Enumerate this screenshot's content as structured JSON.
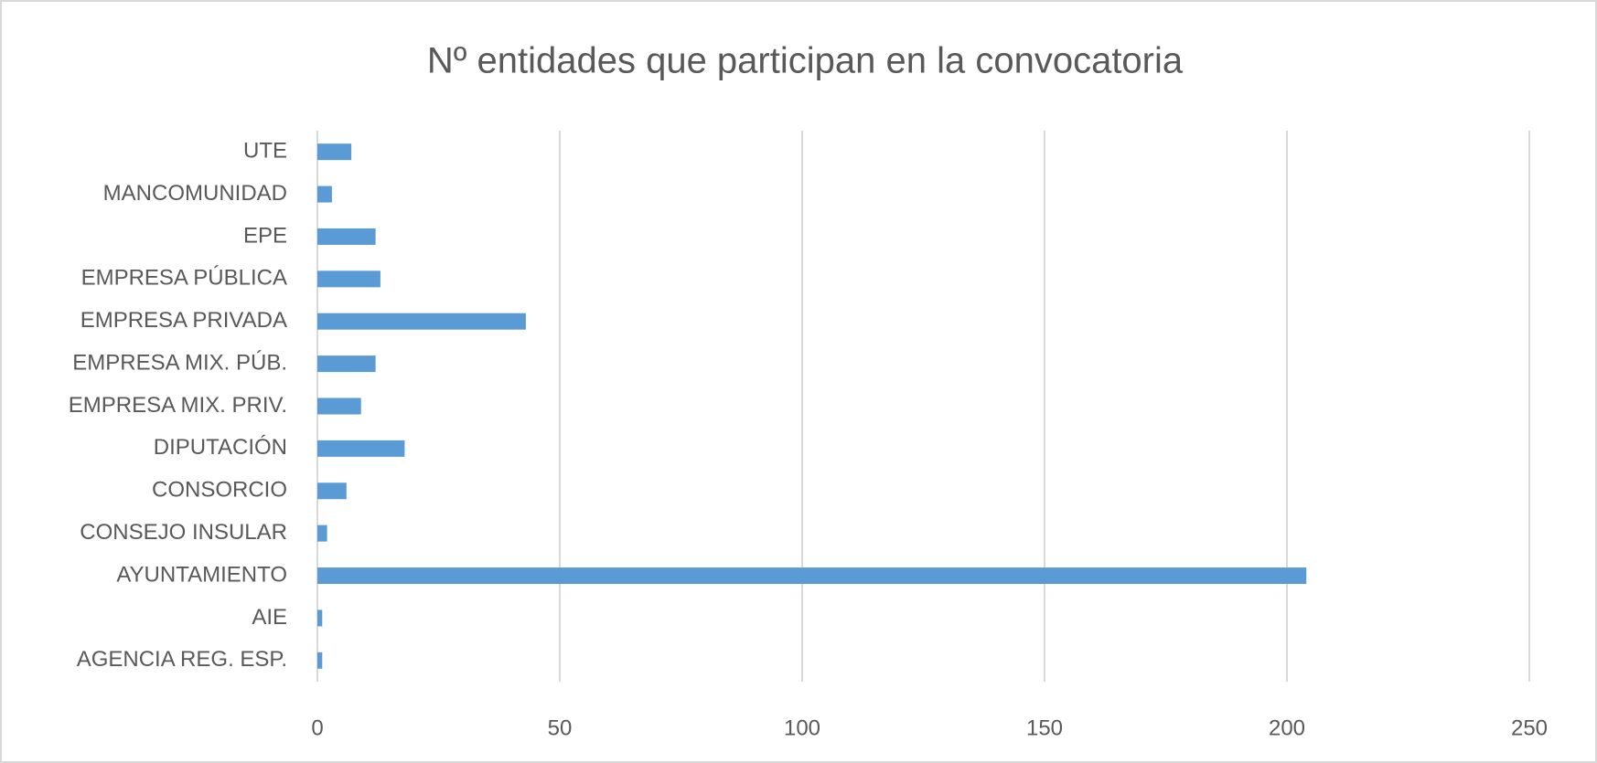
{
  "chart_data": {
    "type": "barh",
    "title": "Nº entidades que participan en la convocatoria",
    "categories": [
      "AGENCIA REG. ESP.",
      "AIE",
      "AYUNTAMIENTO",
      "CONSEJO INSULAR",
      "CONSORCIO",
      "DIPUTACIÓN",
      "EMPRESA MIX. PRIV.",
      "EMPRESA MIX. PÚB.",
      "EMPRESA PRIVADA",
      "EMPRESA PÚBLICA",
      "EPE",
      "MANCOMUNIDAD",
      "UTE"
    ],
    "values": [
      1,
      1,
      204,
      2,
      6,
      18,
      9,
      12,
      43,
      13,
      12,
      3,
      7
    ],
    "color": "#5b9bd5",
    "xlim": [
      0,
      250
    ],
    "xticks": [
      0,
      50,
      100,
      150,
      200,
      250
    ],
    "grid": true
  }
}
